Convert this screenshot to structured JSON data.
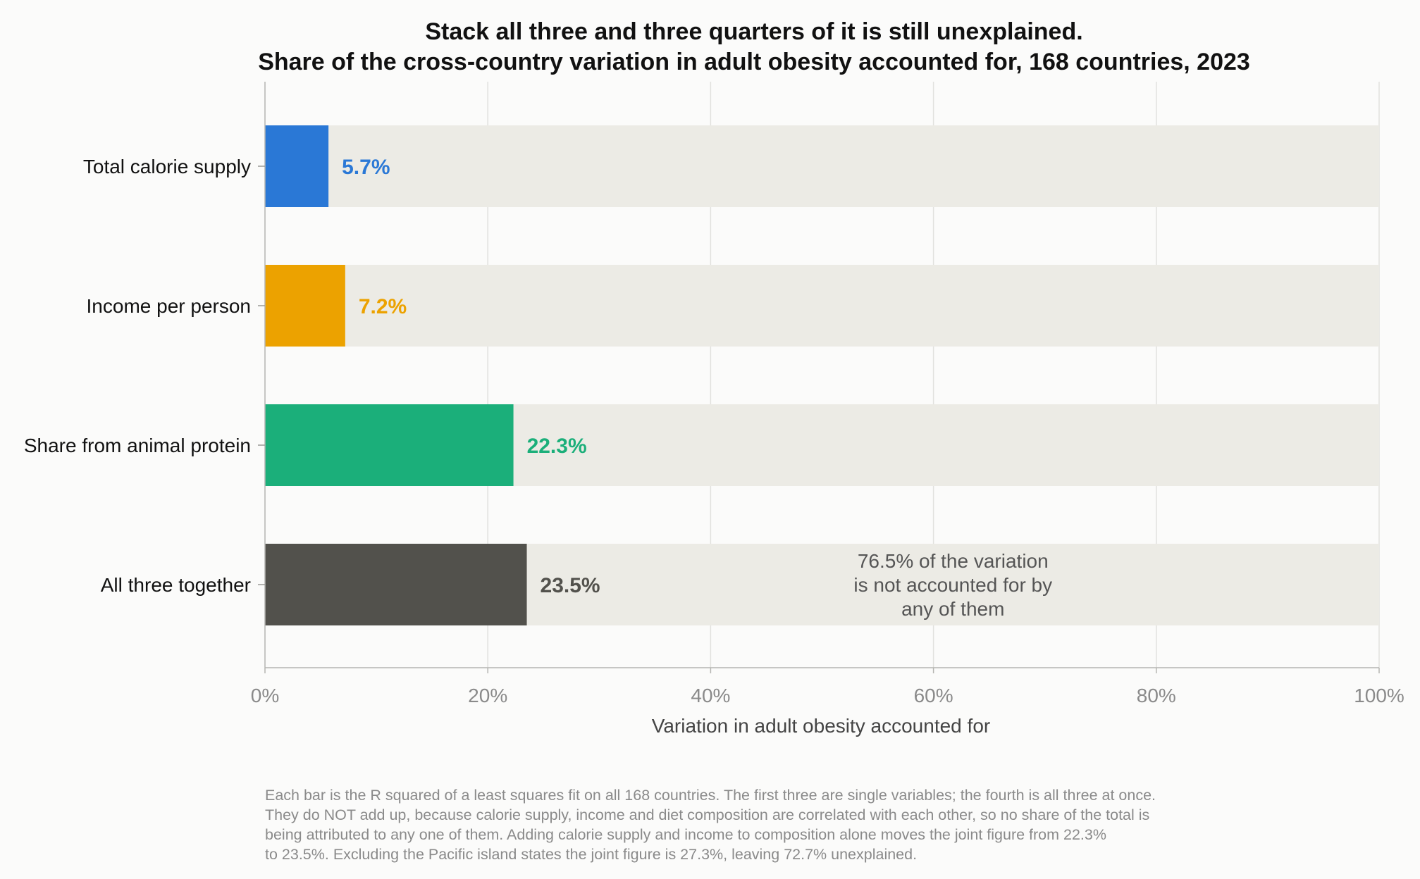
{
  "chart_data": {
    "type": "bar",
    "orientation": "horizontal",
    "title_lines": [
      "Stack all three and three quarters of it is still unexplained.",
      "Share of the cross-country variation in adult obesity accounted for, 168 countries, 2023"
    ],
    "xlabel": "Variation in adult obesity accounted for",
    "ylabel": "",
    "xlim": [
      0,
      100
    ],
    "x_ticks": [
      0,
      20,
      40,
      60,
      80,
      100
    ],
    "x_tick_labels": [
      "0%",
      "20%",
      "40%",
      "60%",
      "80%",
      "100%"
    ],
    "grid": "vertical",
    "categories": [
      "Total calorie supply",
      "Income per person",
      "Share from animal protein",
      "All three together"
    ],
    "values": [
      5.7,
      7.2,
      22.3,
      23.5
    ],
    "value_labels": [
      "5.7%",
      "7.2%",
      "22.3%",
      "23.5%"
    ],
    "colors": [
      "#2a78d6",
      "#eca200",
      "#1baf7a",
      "#52514c"
    ],
    "track_max": 100,
    "track_color": "#ecebe5",
    "annotation": {
      "category": "All three together",
      "lines": [
        "76.5% of the variation",
        "is not accounted for by",
        "any of them"
      ]
    },
    "footnote_lines": [
      "Each bar is the R squared of a least squares fit on all 168 countries. The first three are single variables; the fourth is all three at once.",
      "They do NOT add up, because calorie supply, income and diet composition are correlated with each other, so no share of the total is",
      "being attributed to any one of them. Adding calorie supply and income to composition alone moves the joint figure from 22.3%",
      "to 23.5%. Excluding the Pacific island states the joint figure is 27.3%, leaving 72.7% unexplained."
    ]
  }
}
